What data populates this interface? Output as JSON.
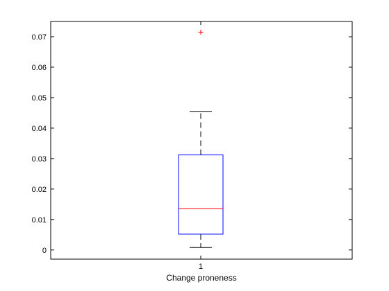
{
  "chart_data": {
    "type": "box",
    "xlabel": "Change proneness",
    "ylabel": "",
    "title": "",
    "ylim": [
      -0.003,
      0.075
    ],
    "yticks": [
      0,
      0.01,
      0.02,
      0.03,
      0.04,
      0.05,
      0.06,
      0.07
    ],
    "ytick_labels": [
      "0",
      "0.01",
      "0.02",
      "0.03",
      "0.04",
      "0.05",
      "0.06",
      "0.07"
    ],
    "categories": [
      "1"
    ],
    "boxes": [
      {
        "label": "1",
        "whisker_low": 0.0008,
        "q1": 0.0052,
        "median": 0.0136,
        "q3": 0.0312,
        "whisker_high": 0.0455,
        "outliers": [
          0.0715
        ]
      }
    ],
    "colors": {
      "box": "#0000ff",
      "median": "#ff0000",
      "whisker": "#000000",
      "outlier": "#ff0000"
    },
    "grid": false
  }
}
